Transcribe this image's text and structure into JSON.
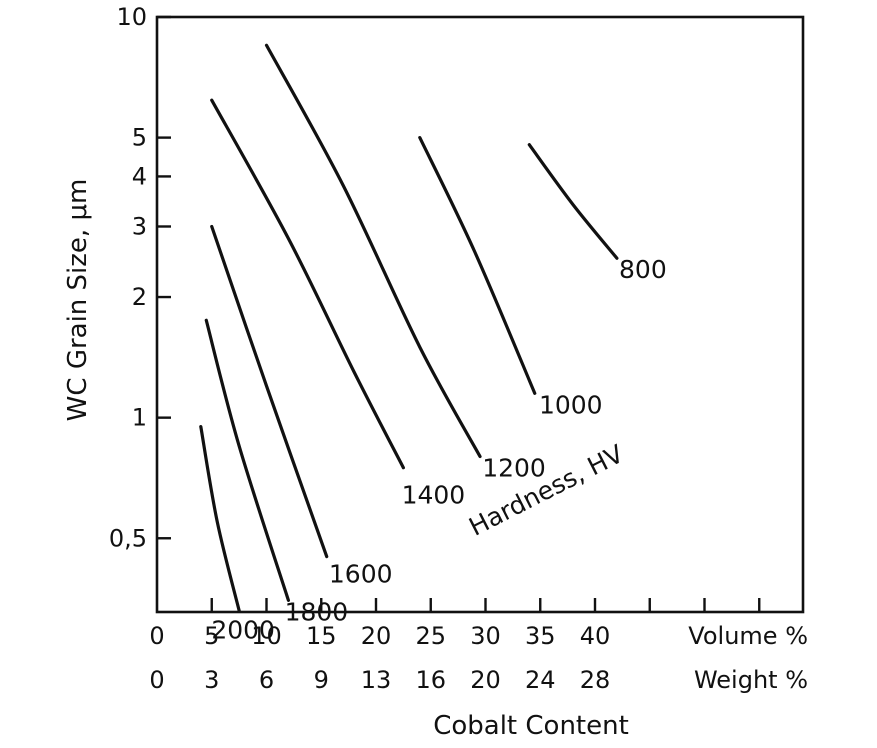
{
  "chart_data": {
    "type": "line",
    "title": "",
    "ylabel": "WC Grain Size, μm",
    "xlabel": "Cobalt Content",
    "y_scale": "log",
    "ylim": [
      0.25,
      10
    ],
    "xlim": [
      0,
      58
    ],
    "y_ticks": [
      {
        "value": 10,
        "label": "10"
      },
      {
        "value": 5,
        "label": "5"
      },
      {
        "value": 4,
        "label": "4"
      },
      {
        "value": 3,
        "label": "3"
      },
      {
        "value": 2,
        "label": "2"
      },
      {
        "value": 1,
        "label": "1"
      },
      {
        "value": 0.5,
        "label": "0,5"
      }
    ],
    "x_ticks": [
      0,
      5,
      10,
      15,
      20,
      25,
      30,
      35,
      40,
      45,
      50,
      55
    ],
    "x_labels_volume": [
      {
        "value": 0,
        "label": "0"
      },
      {
        "value": 5,
        "label": "5"
      },
      {
        "value": 10,
        "label": "10"
      },
      {
        "value": 15,
        "label": "15"
      },
      {
        "value": 20,
        "label": "20"
      },
      {
        "value": 25,
        "label": "25"
      },
      {
        "value": 30,
        "label": "30"
      },
      {
        "value": 35,
        "label": "35"
      },
      {
        "value": 40,
        "label": "40"
      }
    ],
    "x_labels_weight": [
      {
        "value": 0,
        "label": "0"
      },
      {
        "value": 5,
        "label": "3"
      },
      {
        "value": 10,
        "label": "6"
      },
      {
        "value": 15,
        "label": "9"
      },
      {
        "value": 20,
        "label": "13"
      },
      {
        "value": 25,
        "label": "16"
      },
      {
        "value": 30,
        "label": "20"
      },
      {
        "value": 35,
        "label": "24"
      },
      {
        "value": 40,
        "label": "28"
      }
    ],
    "volume_label": "Volume %",
    "weight_label": "Weight %",
    "annotation": "Hardness, HV",
    "series": [
      {
        "name": "2000",
        "points": [
          [
            4.0,
            0.95
          ],
          [
            5.5,
            0.55
          ],
          [
            7.5,
            0.33
          ]
        ]
      },
      {
        "name": "1800",
        "points": [
          [
            4.5,
            1.75
          ],
          [
            7.5,
            0.85
          ],
          [
            12.0,
            0.35
          ]
        ]
      },
      {
        "name": "1600",
        "points": [
          [
            5.0,
            3.0
          ],
          [
            10.0,
            1.2
          ],
          [
            15.5,
            0.45
          ]
        ]
      },
      {
        "name": "1400",
        "points": [
          [
            5.0,
            6.2
          ],
          [
            12.0,
            2.8
          ],
          [
            18.0,
            1.3
          ],
          [
            22.5,
            0.75
          ]
        ]
      },
      {
        "name": "1200",
        "points": [
          [
            10.0,
            8.5
          ],
          [
            17.0,
            3.8
          ],
          [
            24.0,
            1.5
          ],
          [
            29.5,
            0.8
          ]
        ]
      },
      {
        "name": "1000",
        "points": [
          [
            24.0,
            5.0
          ],
          [
            29.0,
            2.6
          ],
          [
            34.5,
            1.15
          ]
        ]
      },
      {
        "name": "800",
        "points": [
          [
            34.0,
            4.8
          ],
          [
            38.0,
            3.4
          ],
          [
            42.0,
            2.5
          ]
        ]
      }
    ]
  }
}
